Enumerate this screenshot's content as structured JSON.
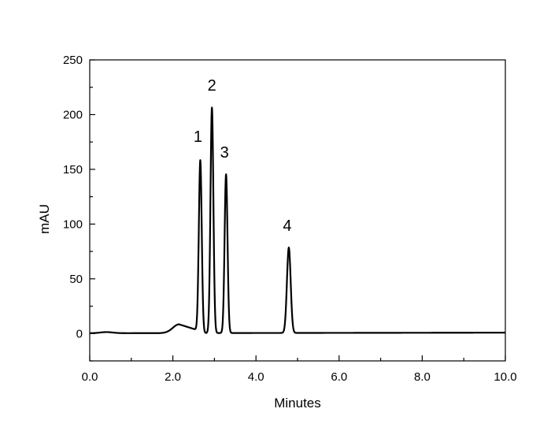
{
  "chart_data": {
    "type": "line",
    "title": "",
    "xlabel": "Minutes",
    "ylabel": "mAU",
    "xlim": [
      0,
      10
    ],
    "ylim": [
      -25,
      250
    ],
    "x_ticks": [
      "0.0",
      "2.0",
      "4.0",
      "6.0",
      "8.0",
      "10.0"
    ],
    "x_tick_values": [
      0,
      2,
      4,
      6,
      8,
      10
    ],
    "y_ticks": [
      "0",
      "50",
      "100",
      "150",
      "200",
      "250"
    ],
    "y_tick_values": [
      0,
      50,
      100,
      150,
      200,
      250
    ],
    "grid": false,
    "line_color": "#000000",
    "peaks": [
      {
        "label": "1",
        "time": 2.66,
        "height": 158
      },
      {
        "label": "2",
        "time": 2.94,
        "height": 206
      },
      {
        "label": "3",
        "time": 3.28,
        "height": 145
      },
      {
        "label": "4",
        "time": 4.79,
        "height": 78
      }
    ],
    "baseline_features": [
      {
        "time": 0.4,
        "height": 1
      },
      {
        "time": 2.15,
        "height": 8
      }
    ]
  }
}
